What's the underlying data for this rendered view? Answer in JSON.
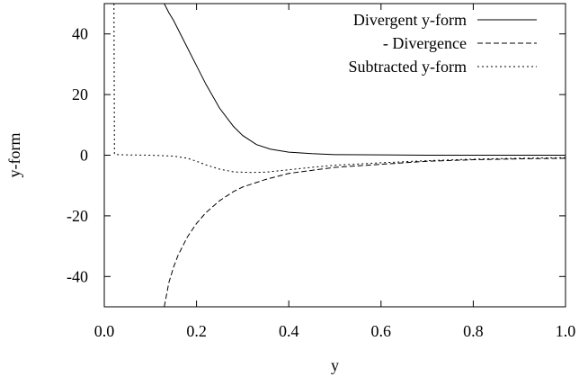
{
  "chart_data": {
    "type": "line",
    "xlabel": "y",
    "ylabel": "y-form",
    "xlim": [
      0.0,
      1.0
    ],
    "ylim": [
      -50,
      50
    ],
    "xticks": [
      0.0,
      0.2,
      0.4,
      0.6,
      0.8,
      1.0
    ],
    "xtick_labels": [
      "0.0",
      "0.2",
      "0.4",
      "0.6",
      "0.8",
      "1.0"
    ],
    "yticks": [
      -40,
      -20,
      0,
      20,
      40
    ],
    "ytick_labels": [
      "-40",
      "-20",
      "0",
      "20",
      "40"
    ],
    "grid": false,
    "legend_position": "top-right",
    "series": [
      {
        "name": "Divergent y-form",
        "style": "solid",
        "x": [
          0.13,
          0.14,
          0.15,
          0.16,
          0.18,
          0.2,
          0.22,
          0.25,
          0.28,
          0.3,
          0.33,
          0.36,
          0.4,
          0.45,
          0.5,
          0.6,
          0.7,
          0.8,
          0.9,
          1.0
        ],
        "y": [
          50,
          47,
          44.5,
          41.5,
          35.5,
          29.5,
          23.5,
          15.5,
          9.5,
          6.5,
          3.5,
          2,
          1,
          0.5,
          0.2,
          0.1,
          0,
          0,
          0,
          0
        ]
      },
      {
        "name": "- Divergence",
        "style": "dashed",
        "x": [
          0.13,
          0.14,
          0.15,
          0.16,
          0.18,
          0.2,
          0.22,
          0.25,
          0.28,
          0.3,
          0.35,
          0.4,
          0.45,
          0.5,
          0.6,
          0.7,
          0.8,
          0.9,
          1.0
        ],
        "y": [
          -50,
          -42,
          -37,
          -33,
          -27,
          -22.5,
          -19,
          -15,
          -12,
          -10.5,
          -8,
          -6,
          -5,
          -4,
          -3,
          -2,
          -1.5,
          -1.2,
          -1
        ]
      },
      {
        "name": "Subtracted y-form",
        "style": "dotted",
        "x": [
          0.021,
          0.022,
          0.025,
          0.05,
          0.1,
          0.15,
          0.18,
          0.2,
          0.22,
          0.25,
          0.28,
          0.32,
          0.35,
          0.4,
          0.45,
          0.5,
          0.6,
          0.7,
          0.8,
          0.9,
          1.0
        ],
        "y": [
          50,
          0.5,
          0.2,
          0.1,
          0,
          -0.3,
          -1,
          -2,
          -3.2,
          -4.6,
          -5.5,
          -5.7,
          -5.6,
          -4.8,
          -4,
          -3.3,
          -2.5,
          -1.8,
          -1.3,
          -1,
          -0.8
        ]
      }
    ]
  }
}
